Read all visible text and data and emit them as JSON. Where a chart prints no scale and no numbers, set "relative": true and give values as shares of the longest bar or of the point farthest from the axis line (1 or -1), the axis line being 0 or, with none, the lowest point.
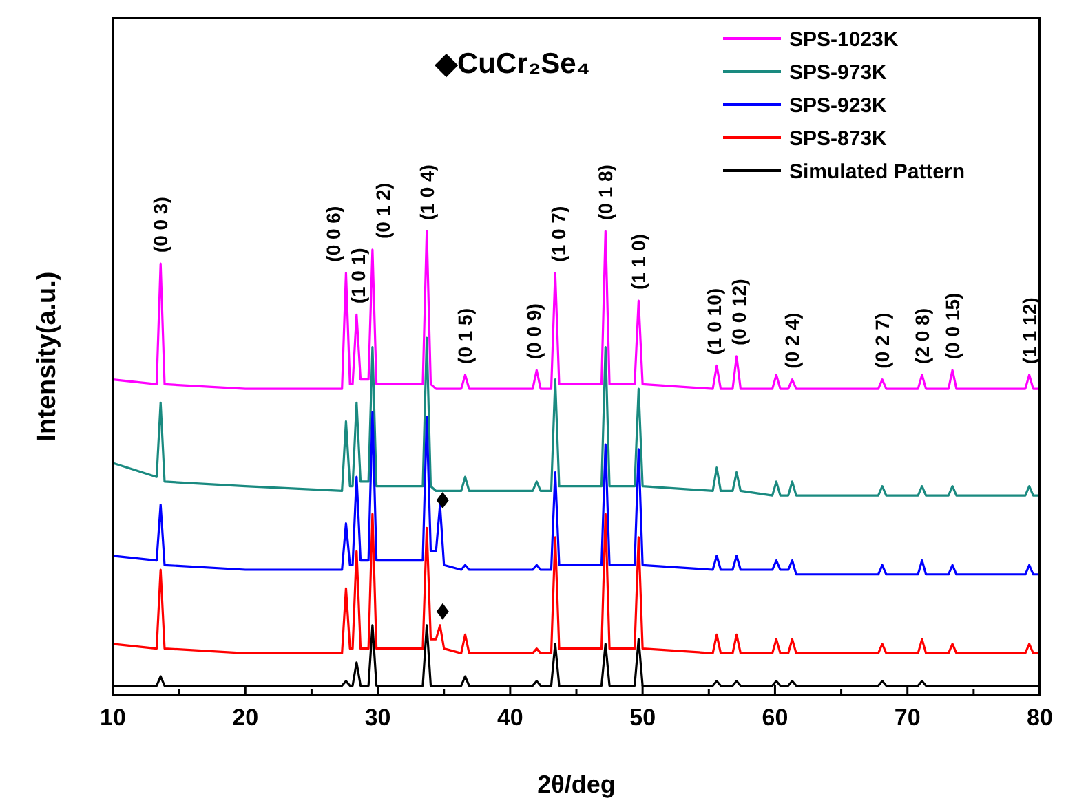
{
  "chart_data": {
    "type": "line",
    "xlabel": "2θ/deg",
    "ylabel": "Intensity(a.u.)",
    "relative": true,
    "tick_labels": "x",
    "legend": "top right",
    "grid": false,
    "line_style": "solid",
    "marker": "none",
    "xlim": [
      10,
      80
    ],
    "xticks": [
      10,
      {
        "value": 15,
        "label": null
      },
      20,
      {
        "value": 25,
        "label": null
      },
      30,
      {
        "value": 35,
        "label": null
      },
      40,
      {
        "value": 45,
        "label": null
      },
      50,
      {
        "value": 55,
        "label": null
      },
      60,
      {
        "value": 65,
        "label": null
      },
      70,
      {
        "value": 75,
        "label": null
      },
      80
    ],
    "x": [
      10,
      13.3,
      13.6,
      13.9,
      20,
      27.3,
      27.6,
      27.9,
      28.1,
      28.4,
      28.7,
      29.3,
      29.6,
      29.9,
      33.4,
      33.7,
      34.0,
      34.4,
      34.7,
      35.0,
      36.3,
      36.6,
      36.9,
      41.7,
      42.0,
      42.3,
      43.1,
      43.4,
      43.7,
      46.9,
      47.2,
      47.5,
      49.4,
      49.7,
      50.0,
      55.3,
      55.6,
      55.9,
      56.8,
      57.1,
      57.4,
      59.8,
      60.1,
      60.4,
      61.0,
      61.3,
      61.6,
      67.8,
      68.1,
      68.4,
      70.8,
      71.1,
      71.4,
      73.1,
      73.4,
      73.7,
      78.9,
      79.2,
      79.5,
      80
    ],
    "series": [
      {
        "name": "SPS-1023K",
        "color": "#ff00ff",
        "values": [
          0.68,
          0.67,
          0.93,
          0.67,
          0.66,
          0.66,
          0.91,
          0.67,
          0.67,
          0.82,
          0.68,
          0.68,
          0.96,
          0.67,
          0.67,
          1.0,
          0.67,
          0.66,
          0.66,
          0.66,
          0.66,
          0.69,
          0.66,
          0.66,
          0.7,
          0.66,
          0.66,
          0.91,
          0.67,
          0.67,
          1.0,
          0.67,
          0.67,
          0.85,
          0.67,
          0.66,
          0.71,
          0.66,
          0.66,
          0.73,
          0.66,
          0.66,
          0.69,
          0.66,
          0.66,
          0.68,
          0.66,
          0.66,
          0.68,
          0.66,
          0.66,
          0.69,
          0.66,
          0.66,
          0.7,
          0.66,
          0.66,
          0.69,
          0.66,
          0.66
        ]
      },
      {
        "name": "SPS-973K",
        "color": "#1a8a80",
        "values": [
          0.5,
          0.47,
          0.63,
          0.46,
          0.45,
          0.44,
          0.59,
          0.45,
          0.45,
          0.63,
          0.46,
          0.46,
          0.75,
          0.45,
          0.45,
          0.77,
          0.45,
          0.44,
          0.44,
          0.44,
          0.44,
          0.47,
          0.44,
          0.44,
          0.46,
          0.44,
          0.44,
          0.68,
          0.45,
          0.45,
          0.75,
          0.45,
          0.45,
          0.66,
          0.45,
          0.44,
          0.49,
          0.44,
          0.44,
          0.48,
          0.44,
          0.43,
          0.46,
          0.43,
          0.43,
          0.46,
          0.43,
          0.43,
          0.45,
          0.43,
          0.43,
          0.45,
          0.43,
          0.43,
          0.45,
          0.43,
          0.43,
          0.45,
          0.43,
          0.43
        ]
      },
      {
        "name": "SPS-923K",
        "color": "#0000ff",
        "values": [
          0.3,
          0.29,
          0.41,
          0.28,
          0.27,
          0.27,
          0.37,
          0.28,
          0.28,
          0.47,
          0.29,
          0.29,
          0.61,
          0.29,
          0.29,
          0.6,
          0.31,
          0.31,
          0.41,
          0.28,
          0.27,
          0.28,
          0.27,
          0.27,
          0.28,
          0.27,
          0.27,
          0.48,
          0.28,
          0.28,
          0.54,
          0.28,
          0.28,
          0.53,
          0.28,
          0.27,
          0.3,
          0.27,
          0.27,
          0.3,
          0.27,
          0.27,
          0.29,
          0.27,
          0.27,
          0.29,
          0.26,
          0.26,
          0.28,
          0.26,
          0.26,
          0.29,
          0.26,
          0.26,
          0.28,
          0.26,
          0.26,
          0.28,
          0.26,
          0.26
        ]
      },
      {
        "name": "SPS-873K",
        "color": "#ff0000",
        "values": [
          0.11,
          0.1,
          0.27,
          0.1,
          0.09,
          0.09,
          0.23,
          0.1,
          0.1,
          0.31,
          0.1,
          0.1,
          0.39,
          0.1,
          0.1,
          0.36,
          0.12,
          0.12,
          0.15,
          0.1,
          0.09,
          0.13,
          0.09,
          0.09,
          0.1,
          0.09,
          0.09,
          0.34,
          0.1,
          0.1,
          0.39,
          0.1,
          0.1,
          0.34,
          0.1,
          0.09,
          0.13,
          0.09,
          0.09,
          0.13,
          0.09,
          0.09,
          0.12,
          0.09,
          0.09,
          0.12,
          0.09,
          0.09,
          0.11,
          0.09,
          0.09,
          0.12,
          0.09,
          0.09,
          0.11,
          0.09,
          0.09,
          0.11,
          0.09,
          0.09
        ]
      },
      {
        "name": "Simulated Pattern",
        "color": "#000000",
        "values": [
          0.02,
          0.02,
          0.04,
          0.02,
          0.02,
          0.02,
          0.03,
          0.02,
          0.02,
          0.07,
          0.02,
          0.02,
          0.15,
          0.02,
          0.02,
          0.15,
          0.02,
          0.02,
          0.02,
          0.02,
          0.02,
          0.04,
          0.02,
          0.02,
          0.03,
          0.02,
          0.02,
          0.11,
          0.02,
          0.02,
          0.11,
          0.02,
          0.02,
          0.12,
          0.02,
          0.02,
          0.03,
          0.02,
          0.02,
          0.03,
          0.02,
          0.02,
          0.03,
          0.02,
          0.02,
          0.03,
          0.02,
          0.02,
          0.03,
          0.02,
          0.02,
          0.03,
          0.02,
          0.02,
          0.02,
          0.02,
          0.02,
          0.02,
          0.02,
          0.02
        ]
      },
      {
        "type": "scatter",
        "marker": "diamond",
        "color": "#000000",
        "x": [
          34.9,
          34.9
        ],
        "values": [
          0.42,
          0.18
        ]
      }
    ],
    "annotations": [
      "◆CuCr₂Se₄",
      {
        "text": "(0 0 3)",
        "x": 13.6,
        "y": 0.93
      },
      {
        "text": "(0 0 6)",
        "x": 27.6,
        "y": 0.91
      },
      {
        "text": "(1 0 1)",
        "x": 28.4,
        "y": 0.82
      },
      {
        "text": "(0 1 2)",
        "x": 29.6,
        "y": 0.96
      },
      {
        "text": "(1 0 4)",
        "x": 33.7,
        "y": 1.0
      },
      {
        "text": "(0 1 5)",
        "x": 36.6,
        "y": 0.69
      },
      {
        "text": "(0 0 9)",
        "x": 42.0,
        "y": 0.7
      },
      {
        "text": "(1 0 7)",
        "x": 43.4,
        "y": 0.91
      },
      {
        "text": "(0 1 8)",
        "x": 47.2,
        "y": 1.0
      },
      {
        "text": "(1 1 0)",
        "x": 49.7,
        "y": 0.85
      },
      {
        "text": "(1 0 10)",
        "x": 55.6,
        "y": 0.71
      },
      {
        "text": "(0 0 12)",
        "x": 57.1,
        "y": 0.73
      },
      {
        "text": "(0 2 4)",
        "x": 61.3,
        "y": 0.68
      },
      {
        "text": "(0 2 7)",
        "x": 68.1,
        "y": 0.68
      },
      {
        "text": "(2 0 8)",
        "x": 71.1,
        "y": 0.69
      },
      {
        "text": "(0 0 15)",
        "x": 73.4,
        "y": 0.7
      },
      {
        "text": "(1 1 12)",
        "x": 79.2,
        "y": 0.69
      }
    ]
  }
}
